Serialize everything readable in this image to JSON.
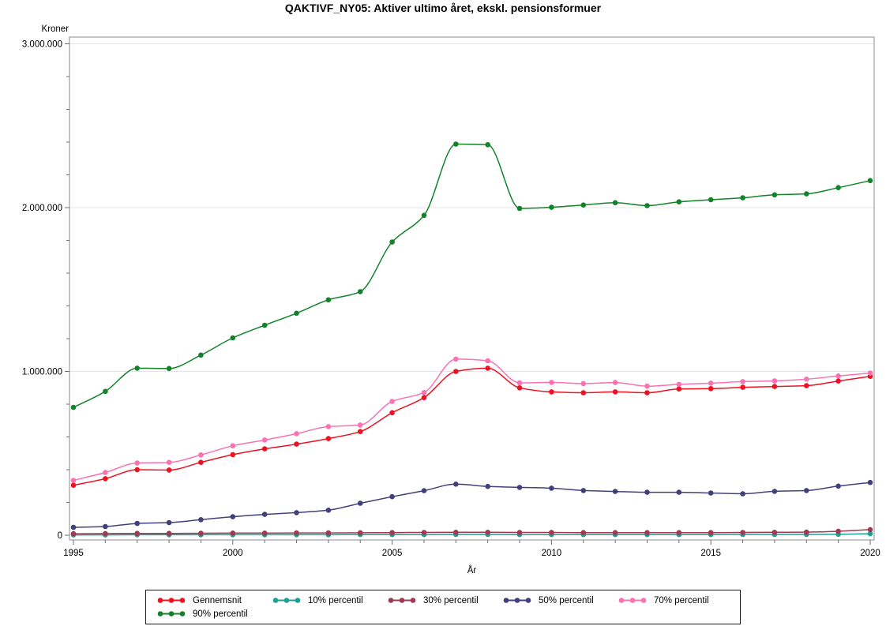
{
  "title": "QAKTIVF_NY05: Aktiver ultimo året, ekskl. pensionsformuer",
  "chart_data": {
    "type": "line",
    "title": "QAKTIVF_NY05: Aktiver ultimo året, ekskl. pensionsformuer",
    "y_unit_label": "Kroner",
    "xlabel": "År",
    "ylabel": "Kroner",
    "ylim": [
      0,
      3000000
    ],
    "xlim": [
      1995,
      2020
    ],
    "grid": "horizontal-major-gridlines",
    "legend_position": "bottom-box",
    "interpolation": "smooth-spline-with-markers",
    "y_major_ticks": [
      0,
      1000000,
      2000000,
      3000000
    ],
    "y_tick_labels": [
      "0",
      "1.000.000",
      "2.000.000",
      "3.000.000"
    ],
    "y_minor_step": 200000,
    "x_major_ticks": [
      1995,
      2000,
      2005,
      2010,
      2015,
      2020
    ],
    "x_tick_labels": [
      "1995",
      "2000",
      "2005",
      "2010",
      "2015",
      "2020"
    ],
    "x_minor_step": 1,
    "x": [
      1995,
      1996,
      1997,
      1998,
      1999,
      2000,
      2001,
      2002,
      2003,
      2004,
      2005,
      2006,
      2007,
      2008,
      2009,
      2010,
      2011,
      2012,
      2013,
      2014,
      2015,
      2016,
      2017,
      2018,
      2019,
      2020
    ],
    "series": [
      {
        "name": "Gennemsnit",
        "color": "#ee1122",
        "values": [
          305000,
          345000,
          400000,
          398000,
          445000,
          492000,
          527000,
          556000,
          590000,
          633000,
          748000,
          840000,
          1000000,
          1020000,
          900000,
          875000,
          870000,
          875000,
          870000,
          893000,
          895000,
          903000,
          908000,
          913000,
          941000,
          970000
        ]
      },
      {
        "name": "10% percentil",
        "color": "#1f9e94",
        "values": [
          2000,
          2000,
          3000,
          3000,
          3000,
          3000,
          3000,
          3000,
          3000,
          4000,
          4000,
          4000,
          5000,
          5000,
          4000,
          4000,
          4000,
          4000,
          4000,
          4000,
          4000,
          5000,
          5000,
          5000,
          6000,
          9000
        ]
      },
      {
        "name": "30% percentil",
        "color": "#a03a50",
        "values": [
          9000,
          10000,
          11000,
          11000,
          12000,
          13000,
          13000,
          14000,
          14000,
          15000,
          16000,
          17000,
          18000,
          18000,
          17000,
          17000,
          16000,
          16000,
          16000,
          16000,
          16000,
          17000,
          18000,
          19000,
          24000,
          34000
        ]
      },
      {
        "name": "50% percentil",
        "color": "#42407a",
        "values": [
          48000,
          53000,
          72000,
          77000,
          95000,
          113000,
          127000,
          138000,
          153000,
          195000,
          235000,
          272000,
          312000,
          298000,
          292000,
          287000,
          273000,
          267000,
          262000,
          262000,
          258000,
          253000,
          268000,
          273000,
          300000,
          322000
        ]
      },
      {
        "name": "70% percentil",
        "color": "#f972b2",
        "values": [
          335000,
          383000,
          441000,
          445000,
          490000,
          546000,
          581000,
          620000,
          663000,
          673000,
          817000,
          871000,
          1075000,
          1065000,
          930000,
          933000,
          926000,
          932000,
          910000,
          921000,
          928000,
          938000,
          942000,
          953000,
          972000,
          990000
        ]
      },
      {
        "name": "90% percentil",
        "color": "#13832a",
        "values": [
          780000,
          878000,
          1020000,
          1018000,
          1100000,
          1205000,
          1282000,
          1355000,
          1437000,
          1487000,
          1790000,
          1953000,
          2388000,
          2384000,
          1995000,
          2002000,
          2016000,
          2030000,
          2012000,
          2035000,
          2048000,
          2060000,
          2078000,
          2084000,
          2122000,
          2165000
        ]
      }
    ],
    "colors": {
      "frame": "#8c8c8c",
      "tick": "#6e6e6e",
      "gridline": "#e4e4e4"
    }
  }
}
